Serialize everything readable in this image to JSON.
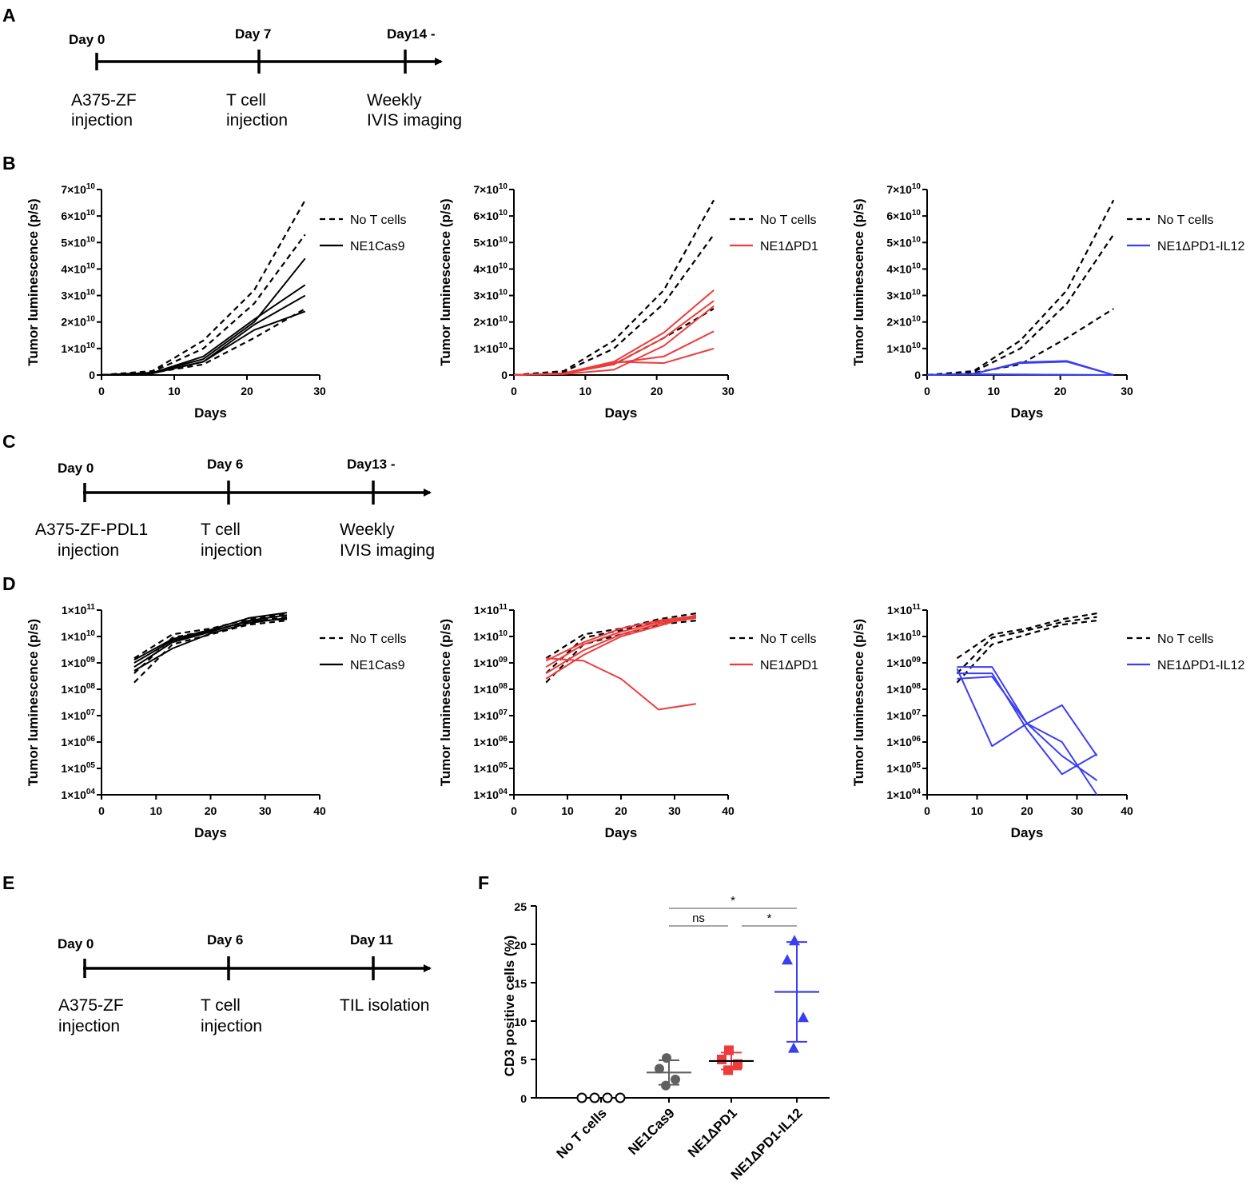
{
  "panel_labels": {
    "a": "A",
    "b": "B",
    "c": "C",
    "d": "D",
    "e": "E",
    "f": "F"
  },
  "timelines": {
    "A": {
      "days": [
        "Day 0",
        "Day 7",
        "Day14 -"
      ],
      "events": [
        [
          "A375-ZF",
          "injection"
        ],
        [
          "T cell",
          "injection"
        ],
        [
          "Weekly",
          "IVIS imaging"
        ]
      ]
    },
    "C": {
      "days": [
        "Day 0",
        "Day 6",
        "Day13 -"
      ],
      "events": [
        [
          "A375-ZF-PDL1",
          "injection"
        ],
        [
          "T cell",
          "injection"
        ],
        [
          "Weekly",
          "IVIS imaging"
        ]
      ]
    },
    "E": {
      "days": [
        "Day 0",
        "Day 6",
        "Day 11"
      ],
      "events": [
        [
          "A375-ZF",
          "injection"
        ],
        [
          "T cell",
          "injection"
        ],
        [
          "TIL isolation",
          ""
        ]
      ]
    }
  },
  "colors": {
    "black": "#000000",
    "red": "#ee3b3b",
    "blue": "#3a3df2",
    "gray": "#606060",
    "bracket": "#888888"
  },
  "chart_data": [
    {
      "id": "B1",
      "type": "line",
      "scale": "linear",
      "xlabel": "Days",
      "ylabel": "Tumor luminescence  (p/s)",
      "xlim": [
        0,
        30
      ],
      "xticks": [
        "0",
        "10",
        "20",
        "30"
      ],
      "ylim": [
        0,
        70000000000.0
      ],
      "yticks": [
        "0",
        "1×10",
        "2×10",
        "3×10",
        "4×10",
        "5×10",
        "6×10",
        "7×10"
      ],
      "ytick_exp": "10",
      "x": [
        0,
        7,
        14,
        21,
        28
      ],
      "legend": [
        {
          "label": "No T cells",
          "style": "dashed",
          "color": "#000000"
        },
        {
          "label": "NE1Cas9",
          "style": "solid",
          "color": "#000000"
        }
      ],
      "series": [
        {
          "name": "No T cells",
          "style": "dashed",
          "color": "#000000",
          "values": [
            0,
            1500000000.0,
            13000000000.0,
            32000000000.0,
            66000000000.0
          ]
        },
        {
          "name": "No T cells",
          "style": "dashed",
          "color": "#000000",
          "values": [
            0,
            1200000000.0,
            10000000000.0,
            27000000000.0,
            53000000000.0
          ]
        },
        {
          "name": "No T cells",
          "style": "dashed",
          "color": "#000000",
          "values": [
            0,
            800000000.0,
            4000000000.0,
            14000000000.0,
            25000000000.0
          ]
        },
        {
          "name": "NE1Cas9",
          "style": "solid",
          "color": "#000000",
          "values": [
            0,
            900000000.0,
            6000000000.0,
            20000000000.0,
            44000000000.0
          ]
        },
        {
          "name": "NE1Cas9",
          "style": "solid",
          "color": "#000000",
          "values": [
            0,
            800000000.0,
            7000000000.0,
            21000000000.0,
            34000000000.0
          ]
        },
        {
          "name": "NE1Cas9",
          "style": "solid",
          "color": "#000000",
          "values": [
            0,
            700000000.0,
            5000000000.0,
            19000000000.0,
            30000000000.0
          ]
        },
        {
          "name": "NE1Cas9",
          "style": "solid",
          "color": "#000000",
          "values": [
            0,
            600000000.0,
            5000000000.0,
            17000000000.0,
            24000000000.0
          ]
        }
      ]
    },
    {
      "id": "B2",
      "type": "line",
      "scale": "linear",
      "xlabel": "Days",
      "ylabel": "Tumor luminescence  (p/s)",
      "xlim": [
        0,
        30
      ],
      "xticks": [
        "0",
        "10",
        "20",
        "30"
      ],
      "ylim": [
        0,
        70000000000.0
      ],
      "yticks": [
        "0",
        "1×10",
        "2×10",
        "3×10",
        "4×10",
        "5×10",
        "6×10",
        "7×10"
      ],
      "ytick_exp": "10",
      "x": [
        0,
        7,
        14,
        21,
        28
      ],
      "legend": [
        {
          "label": "No T cells",
          "style": "dashed",
          "color": "#000000"
        },
        {
          "label": "NE1ΔPD1",
          "style": "solid",
          "color": "#ee3b3b"
        }
      ],
      "series": [
        {
          "name": "No T cells",
          "style": "dashed",
          "color": "#000000",
          "values": [
            0,
            1500000000.0,
            13000000000.0,
            32000000000.0,
            66000000000.0
          ]
        },
        {
          "name": "No T cells",
          "style": "dashed",
          "color": "#000000",
          "values": [
            0,
            1200000000.0,
            10000000000.0,
            27000000000.0,
            53000000000.0
          ]
        },
        {
          "name": "No T cells",
          "style": "dashed",
          "color": "#000000",
          "values": [
            0,
            800000000.0,
            4000000000.0,
            14000000000.0,
            25000000000.0
          ]
        },
        {
          "name": "NE1ΔPD1",
          "style": "solid",
          "color": "#ee3b3b",
          "values": [
            0,
            700000000.0,
            5000000000.0,
            16000000000.0,
            32000000000.0
          ]
        },
        {
          "name": "NE1ΔPD1",
          "style": "solid",
          "color": "#ee3b3b",
          "values": [
            0,
            500000000.0,
            4000000000.0,
            14000000000.0,
            28000000000.0
          ]
        },
        {
          "name": "NE1ΔPD1",
          "style": "solid",
          "color": "#ee3b3b",
          "values": [
            0,
            600000000.0,
            4500000000.0,
            7000000000.0,
            16500000000.0
          ]
        },
        {
          "name": "NE1ΔPD1",
          "style": "solid",
          "color": "#ee3b3b",
          "values": [
            0,
            400000000.0,
            2000000000.0,
            11000000000.0,
            26000000000.0
          ]
        },
        {
          "name": "NE1ΔPD1",
          "style": "solid",
          "color": "#ee3b3b",
          "values": [
            0,
            500000000.0,
            5000000000.0,
            4500000000.0,
            10000000000.0
          ]
        }
      ]
    },
    {
      "id": "B3",
      "type": "line",
      "scale": "linear",
      "xlabel": "Days",
      "ylabel": "Tumor luminescence  (p/s)",
      "xlim": [
        0,
        30
      ],
      "xticks": [
        "0",
        "10",
        "20",
        "30"
      ],
      "ylim": [
        0,
        70000000000.0
      ],
      "yticks": [
        "0",
        "1×10",
        "2×10",
        "3×10",
        "4×10",
        "5×10",
        "6×10",
        "7×10"
      ],
      "ytick_exp": "10",
      "x": [
        0,
        7,
        14,
        21,
        28
      ],
      "legend": [
        {
          "label": "No T cells",
          "style": "dashed",
          "color": "#000000"
        },
        {
          "label": "NE1ΔPD1-IL12",
          "style": "solid",
          "color": "#3a3df2"
        }
      ],
      "series": [
        {
          "name": "No T cells",
          "style": "dashed",
          "color": "#000000",
          "values": [
            0,
            1500000000.0,
            13000000000.0,
            32000000000.0,
            66000000000.0
          ]
        },
        {
          "name": "No T cells",
          "style": "dashed",
          "color": "#000000",
          "values": [
            0,
            1200000000.0,
            10000000000.0,
            27000000000.0,
            53000000000.0
          ]
        },
        {
          "name": "No T cells",
          "style": "dashed",
          "color": "#000000",
          "values": [
            0,
            800000000.0,
            4000000000.0,
            14000000000.0,
            25000000000.0
          ]
        },
        {
          "name": "NE1ΔPD1-IL12",
          "style": "solid",
          "color": "#3a3df2",
          "values": [
            0,
            500000000.0,
            4500000000.0,
            5000000000.0,
            0
          ]
        },
        {
          "name": "NE1ΔPD1-IL12",
          "style": "solid",
          "color": "#3a3df2",
          "values": [
            0,
            400000000.0,
            4800000000.0,
            5300000000.0,
            0
          ]
        },
        {
          "name": "NE1ΔPD1-IL12",
          "style": "solid",
          "color": "#3a3df2",
          "values": [
            0,
            300000000.0,
            200000000.0,
            100000000.0,
            0
          ]
        },
        {
          "name": "NE1ΔPD1-IL12",
          "style": "solid",
          "color": "#3a3df2",
          "values": [
            0,
            200000000.0,
            100000000.0,
            50000000.0,
            0
          ]
        }
      ]
    },
    {
      "id": "D1",
      "type": "line",
      "scale": "log",
      "xlabel": "Days",
      "ylabel": "Tumor luminescence  (p/s)",
      "xlim": [
        0,
        40
      ],
      "xticks": [
        "0",
        "10",
        "20",
        "30",
        "40"
      ],
      "ylim": [
        10000.0,
        100000000000.0
      ],
      "ytick_exps": [
        "11",
        "10",
        "09",
        "08",
        "07",
        "06",
        "05",
        "04"
      ],
      "ytick_base": "1×10",
      "x": [
        6,
        13,
        20,
        27,
        34
      ],
      "legend": [
        {
          "label": "No T cells",
          "style": "dashed",
          "color": "#000000"
        },
        {
          "label": "NE1Cas9",
          "style": "solid",
          "color": "#000000"
        }
      ],
      "series": [
        {
          "name": "No T cells",
          "style": "dashed",
          "color": "#000000",
          "values": [
            1500000000.0,
            12000000000.0,
            20000000000.0,
            45000000000.0,
            75000000000.0
          ]
        },
        {
          "name": "No T cells",
          "style": "dashed",
          "color": "#000000",
          "values": [
            400000000.0,
            9000000000.0,
            17000000000.0,
            35000000000.0,
            55000000000.0
          ]
        },
        {
          "name": "No T cells",
          "style": "dashed",
          "color": "#000000",
          "values": [
            180000000.0,
            5000000000.0,
            12000000000.0,
            28000000000.0,
            40000000000.0
          ]
        },
        {
          "name": "NE1Cas9",
          "style": "solid",
          "color": "#000000",
          "values": [
            1300000000.0,
            8000000000.0,
            18000000000.0,
            50000000000.0,
            80000000000.0
          ]
        },
        {
          "name": "NE1Cas9",
          "style": "solid",
          "color": "#000000",
          "values": [
            700000000.0,
            6000000000.0,
            15000000000.0,
            40000000000.0,
            65000000000.0
          ]
        },
        {
          "name": "NE1Cas9",
          "style": "solid",
          "color": "#000000",
          "values": [
            500000000.0,
            3500000000.0,
            13000000000.0,
            32000000000.0,
            50000000000.0
          ]
        },
        {
          "name": "NE1Cas9",
          "style": "solid",
          "color": "#000000",
          "values": [
            1000000000.0,
            7000000000.0,
            16000000000.0,
            38000000000.0,
            45000000000.0
          ]
        }
      ]
    },
    {
      "id": "D2",
      "type": "line",
      "scale": "log",
      "xlabel": "Days",
      "ylabel": "Tumor luminescence  (p/s)",
      "xlim": [
        0,
        40
      ],
      "xticks": [
        "0",
        "10",
        "20",
        "30",
        "40"
      ],
      "ylim": [
        10000.0,
        100000000000.0
      ],
      "ytick_exps": [
        "11",
        "10",
        "09",
        "08",
        "07",
        "06",
        "05",
        "04"
      ],
      "ytick_base": "1×10",
      "x": [
        6,
        13,
        20,
        27,
        34
      ],
      "legend": [
        {
          "label": "No T cells",
          "style": "dashed",
          "color": "#000000"
        },
        {
          "label": "NE1ΔPD1",
          "style": "solid",
          "color": "#ee3b3b"
        }
      ],
      "series": [
        {
          "name": "No T cells",
          "style": "dashed",
          "color": "#000000",
          "values": [
            1500000000.0,
            12000000000.0,
            20000000000.0,
            45000000000.0,
            75000000000.0
          ]
        },
        {
          "name": "No T cells",
          "style": "dashed",
          "color": "#000000",
          "values": [
            400000000.0,
            9000000000.0,
            17000000000.0,
            35000000000.0,
            55000000000.0
          ]
        },
        {
          "name": "No T cells",
          "style": "dashed",
          "color": "#000000",
          "values": [
            180000000.0,
            5000000000.0,
            12000000000.0,
            28000000000.0,
            40000000000.0
          ]
        },
        {
          "name": "NE1ΔPD1",
          "style": "solid",
          "color": "#ee3b3b",
          "values": [
            1200000000.0,
            6000000000.0,
            20000000000.0,
            40000000000.0,
            60000000000.0
          ]
        },
        {
          "name": "NE1ΔPD1",
          "style": "solid",
          "color": "#ee3b3b",
          "values": [
            700000000.0,
            5000000000.0,
            15000000000.0,
            35000000000.0,
            55000000000.0
          ]
        },
        {
          "name": "NE1ΔPD1",
          "style": "solid",
          "color": "#ee3b3b",
          "values": [
            400000000.0,
            3000000000.0,
            12000000000.0,
            30000000000.0,
            50000000000.0
          ]
        },
        {
          "name": "NE1ΔPD1",
          "style": "solid",
          "color": "#ee3b3b",
          "values": [
            250000000.0,
            2000000000.0,
            10000000000.0,
            25000000000.0,
            65000000000.0
          ]
        },
        {
          "name": "NE1ΔPD1",
          "style": "solid",
          "color": "#ee3b3b",
          "values": [
            1500000000.0,
            1200000000.0,
            250000000.0,
            17000000.0,
            28000000.0
          ]
        }
      ]
    },
    {
      "id": "D3",
      "type": "line",
      "scale": "log",
      "xlabel": "Days",
      "ylabel": "Tumor luminescence  (p/s)",
      "xlim": [
        0,
        40
      ],
      "xticks": [
        "0",
        "10",
        "20",
        "30",
        "40"
      ],
      "ylim": [
        10000.0,
        100000000000.0
      ],
      "ytick_exps": [
        "11",
        "10",
        "09",
        "08",
        "07",
        "06",
        "05",
        "04"
      ],
      "ytick_base": "1×10",
      "x": [
        6,
        13,
        20,
        27,
        34
      ],
      "legend": [
        {
          "label": "No T cells",
          "style": "dashed",
          "color": "#000000"
        },
        {
          "label": "NE1ΔPD1-IL12",
          "style": "solid",
          "color": "#3a3df2"
        }
      ],
      "series": [
        {
          "name": "No T cells",
          "style": "dashed",
          "color": "#000000",
          "values": [
            1500000000.0,
            12000000000.0,
            20000000000.0,
            45000000000.0,
            75000000000.0
          ]
        },
        {
          "name": "No T cells",
          "style": "dashed",
          "color": "#000000",
          "values": [
            400000000.0,
            9000000000.0,
            17000000000.0,
            35000000000.0,
            55000000000.0
          ]
        },
        {
          "name": "No T cells",
          "style": "dashed",
          "color": "#000000",
          "values": [
            180000000.0,
            5000000000.0,
            12000000000.0,
            28000000000.0,
            40000000000.0
          ]
        },
        {
          "name": "NE1ΔPD1-IL12",
          "style": "solid",
          "color": "#3a3df2",
          "values": [
            700000000.0,
            700000000.0,
            5000000.0,
            1000000.0,
            10000.0
          ]
        },
        {
          "name": "NE1ΔPD1-IL12",
          "style": "solid",
          "color": "#3a3df2",
          "values": [
            600000000.0,
            700000.0,
            5000000.0,
            25000000.0,
            300000.0
          ]
        },
        {
          "name": "NE1ΔPD1-IL12",
          "style": "solid",
          "color": "#3a3df2",
          "values": [
            400000000.0,
            400000000.0,
            3000000.0,
            60000.0,
            350000.0
          ]
        },
        {
          "name": "NE1ΔPD1-IL12",
          "style": "solid",
          "color": "#3a3df2",
          "values": [
            250000000.0,
            300000000.0,
            5000000.0,
            300000.0,
            35000.0
          ]
        }
      ]
    },
    {
      "id": "F",
      "type": "scatter",
      "ylabel": "CD3 positive cells  (%)",
      "ylim": [
        0,
        25
      ],
      "yticks": [
        "0",
        "5",
        "10",
        "15",
        "20",
        "25"
      ],
      "categories": [
        "No T cells",
        "NE1Cas9",
        "NE1ΔPD1",
        "NE1ΔPD1-IL12"
      ],
      "series": [
        {
          "name": "No T cells",
          "marker": "open-circle",
          "color": "#000000",
          "values": [
            0,
            0,
            0,
            0
          ],
          "mean": 0,
          "sd": 0
        },
        {
          "name": "NE1Cas9",
          "marker": "circle",
          "color": "#606060",
          "values": [
            5.2,
            3.8,
            2.4,
            1.6
          ],
          "mean": 3.3,
          "sd": 1.6
        },
        {
          "name": "NE1ΔPD1",
          "marker": "square",
          "color": "#ee3b3b",
          "values": [
            6.2,
            5.0,
            4.4,
            3.6
          ],
          "mean": 4.8,
          "sd": 1.1
        },
        {
          "name": "NE1ΔPD1-IL12",
          "marker": "triangle",
          "color": "#3a3df2",
          "values": [
            20.5,
            18.0,
            10.5,
            6.5
          ],
          "mean": 13.8,
          "sd": 6.5
        }
      ],
      "significance": [
        {
          "label": "*",
          "from": "NE1Cas9",
          "to": "NE1ΔPD1-IL12"
        },
        {
          "label": "ns",
          "from": "NE1Cas9",
          "to": "NE1ΔPD1"
        },
        {
          "label": "*",
          "from": "NE1ΔPD1",
          "to": "NE1ΔPD1-IL12"
        }
      ]
    }
  ]
}
